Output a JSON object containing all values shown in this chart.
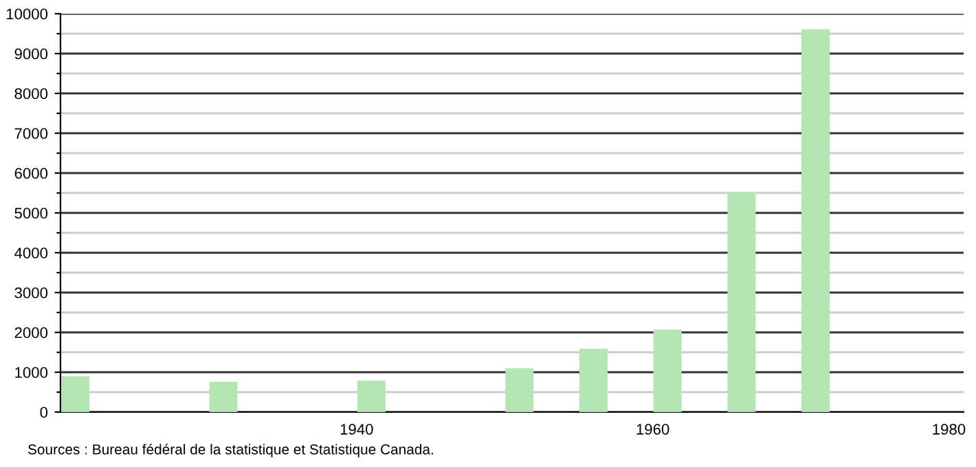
{
  "chart_data": {
    "type": "bar",
    "x": [
      1921,
      1931,
      1941,
      1951,
      1956,
      1961,
      1966,
      1971
    ],
    "values": [
      900,
      760,
      790,
      1100,
      1590,
      2070,
      5520,
      9610
    ],
    "color": "#b3e6b3",
    "xlim": [
      1920,
      1981
    ],
    "xticks": [
      1940,
      1960,
      1980
    ],
    "ylim": [
      0,
      10000
    ],
    "yticks": [
      0,
      {
        "value": 500,
        "label": null
      },
      1000,
      {
        "value": 1500,
        "label": null
      },
      2000,
      {
        "value": 2500,
        "label": null
      },
      3000,
      {
        "value": 3500,
        "label": null
      },
      4000,
      {
        "value": 4500,
        "label": null
      },
      5000,
      {
        "value": 5500,
        "label": null
      },
      6000,
      {
        "value": 6500,
        "label": null
      },
      7000,
      {
        "value": 7500,
        "label": null
      },
      8000,
      {
        "value": 8500,
        "label": null
      },
      9000,
      {
        "value": 9500,
        "label": null
      },
      10000
    ],
    "grid": "y",
    "annotations": [
      "Sources : Bureau fédéral de la statistique et Statistique Canada."
    ]
  }
}
